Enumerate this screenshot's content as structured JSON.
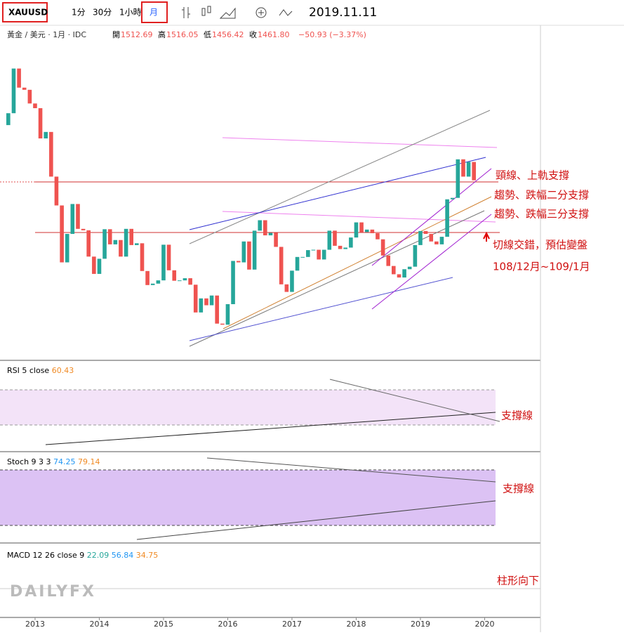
{
  "toolbar": {
    "symbol": "XAUUSD",
    "intervals": [
      "1分",
      "30分",
      "1小時",
      "月"
    ],
    "date": "2019.11.11"
  },
  "header": {
    "name": "黃金 / 美元 · 1月 · IDC",
    "open_label": "開",
    "open": "1512.69",
    "high_label": "高",
    "high": "1516.05",
    "low_label": "低",
    "low": "1456.42",
    "close_label": "收",
    "close": "1461.80",
    "change": "−50.93 (−3.37%)"
  },
  "annotations": [
    "頸線、上軌支撐",
    "趨勢、跌幅二分支撐",
    "趨勢、跌幅三分支撐",
    "切線交錯，預估變盤",
    "108/12月~109/1月"
  ],
  "rsi": {
    "label": "RSI 5 close",
    "value": "60.43",
    "note": "支撐線"
  },
  "stoch": {
    "label": "Stoch 9 3 3",
    "k": "74.25",
    "d": "79.14",
    "note": "支撐線"
  },
  "macd": {
    "label": "MACD 12 26 close 9",
    "hist": "22.09",
    "macd": "56.84",
    "signal": "34.75",
    "note": "柱形向下"
  },
  "watermark": "DAILYFX",
  "chart_data": {
    "type": "candlestick",
    "up_color": "#26a69a",
    "down_color": "#ef5350",
    "x": [
      2012.583,
      2012.667,
      2012.75,
      2012.833,
      2012.917,
      2013,
      2013.083,
      2013.167,
      2013.25,
      2013.333,
      2013.417,
      2013.5,
      2013.583,
      2013.667,
      2013.75,
      2013.833,
      2013.917,
      2014,
      2014.083,
      2014.167,
      2014.25,
      2014.333,
      2014.417,
      2014.5,
      2014.583,
      2014.667,
      2014.75,
      2014.833,
      2014.917,
      2015,
      2015.083,
      2015.167,
      2015.25,
      2015.333,
      2015.417,
      2015.5,
      2015.583,
      2015.667,
      2015.75,
      2015.833,
      2015.917,
      2016,
      2016.083,
      2016.167,
      2016.25,
      2016.333,
      2016.417,
      2016.5,
      2016.583,
      2016.667,
      2016.75,
      2016.833,
      2016.917,
      2017,
      2017.083,
      2017.167,
      2017.25,
      2017.333,
      2017.417,
      2017.5,
      2017.583,
      2017.667,
      2017.75,
      2017.833,
      2017.917,
      2018,
      2018.083,
      2018.167,
      2018.25,
      2018.333,
      2018.417,
      2018.5,
      2018.583,
      2018.667,
      2018.75,
      2018.833,
      2018.917,
      2019,
      2019.083,
      2019.167,
      2019.25,
      2019.333,
      2019.417,
      2019.5,
      2019.583,
      2019.667,
      2019.75,
      2019.833
    ],
    "open": [
      1615,
      1648,
      1772,
      1719,
      1713,
      1675,
      1662,
      1578,
      1596,
      1472,
      1392,
      1234,
      1313,
      1396,
      1327,
      1323,
      1250,
      1202,
      1244,
      1326,
      1284,
      1296,
      1250,
      1327,
      1282,
      1287,
      1210,
      1171,
      1175,
      1184,
      1283,
      1212,
      1183,
      1184,
      1190,
      1172,
      1095,
      1134,
      1115,
      1142,
      1064,
      1061,
      1118,
      1238,
      1234,
      1292,
      1214,
      1322,
      1351,
      1309,
      1316,
      1277,
      1173,
      1152,
      1211,
      1249,
      1249,
      1268,
      1269,
      1242,
      1269,
      1322,
      1280,
      1271,
      1275,
      1303,
      1345,
      1318,
      1325,
      1315,
      1298,
      1253,
      1224,
      1201,
      1192,
      1215,
      1222,
      1282,
      1321,
      1313,
      1292,
      1284,
      1305,
      1409,
      1413,
      1520,
      1472,
      1512.69
    ],
    "close": [
      1648,
      1772,
      1719,
      1713,
      1675,
      1662,
      1578,
      1596,
      1472,
      1392,
      1234,
      1313,
      1396,
      1327,
      1323,
      1250,
      1202,
      1244,
      1326,
      1284,
      1296,
      1250,
      1327,
      1282,
      1287,
      1210,
      1171,
      1175,
      1184,
      1283,
      1212,
      1183,
      1184,
      1190,
      1172,
      1095,
      1134,
      1115,
      1142,
      1064,
      1061,
      1118,
      1238,
      1234,
      1292,
      1214,
      1322,
      1351,
      1309,
      1316,
      1277,
      1173,
      1152,
      1211,
      1249,
      1249,
      1268,
      1269,
      1242,
      1269,
      1322,
      1280,
      1271,
      1275,
      1303,
      1345,
      1318,
      1325,
      1315,
      1298,
      1253,
      1224,
      1201,
      1192,
      1215,
      1222,
      1282,
      1321,
      1313,
      1292,
      1284,
      1305,
      1409,
      1413,
      1520,
      1472,
      1513,
      1461.8
    ],
    "xlim": [
      2012.454,
      2020.76
    ],
    "xticks": [
      2013,
      2014,
      2015,
      2016,
      2017,
      2018,
      2019,
      2020
    ],
    "ylim": [
      964,
      1894
    ]
  }
}
